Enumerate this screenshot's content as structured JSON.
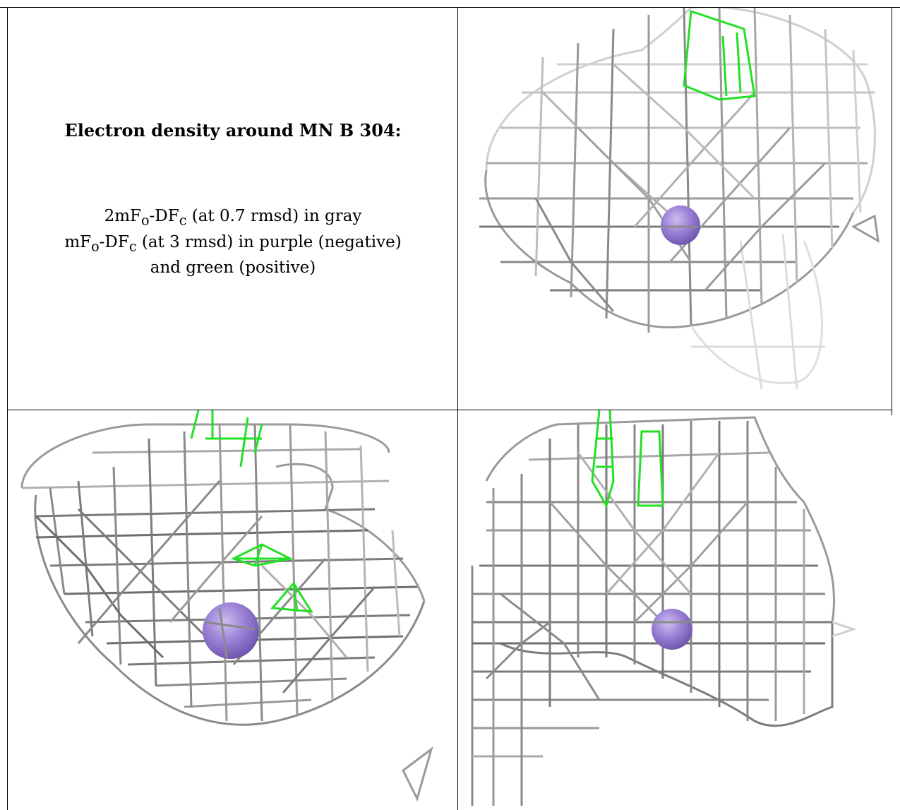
{
  "caption": {
    "title": "Electron density around MN B 304:",
    "line1": "2mFo-DFc (at 0.7 rmsd) in gray",
    "line2": "mFo-DFc (at 3 rmsd) in purple (negative)",
    "line3": "and green (positive)"
  },
  "colors": {
    "mesh_dark": "#6e6e6e",
    "mesh_mid": "#9a9a9a",
    "mesh_light": "#cfcfcf",
    "positive_density": "#22e022",
    "atom": "#9a80d6",
    "border": "#000000"
  },
  "panels": [
    {
      "name": "panel-top-right",
      "atom": "MN"
    },
    {
      "name": "panel-bottom-left",
      "atom": "MN"
    },
    {
      "name": "panel-bottom-right",
      "atom": "MN"
    }
  ]
}
